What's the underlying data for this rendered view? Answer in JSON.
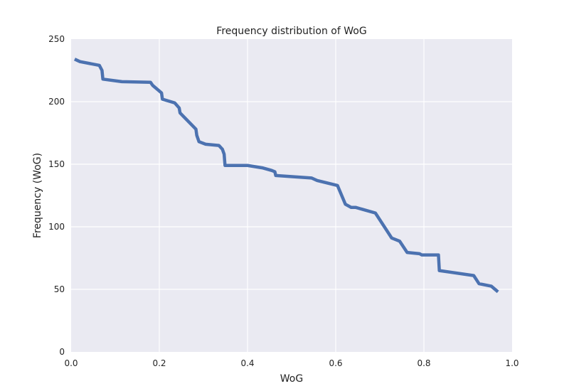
{
  "chart_data": {
    "type": "line",
    "title": "Frequency distribution of WoG",
    "xlabel": "WoG",
    "ylabel": "Frequency (WoG)",
    "xlim": [
      0.0,
      1.0
    ],
    "ylim": [
      0,
      250
    ],
    "xticks": [
      0.0,
      0.2,
      0.4,
      0.6,
      0.8,
      1.0
    ],
    "xtick_labels": [
      "0.0",
      "0.2",
      "0.4",
      "0.6",
      "0.8",
      "1.0"
    ],
    "yticks": [
      0,
      50,
      100,
      150,
      200,
      250
    ],
    "ytick_labels": [
      "0",
      "50",
      "100",
      "150",
      "200",
      "250"
    ],
    "grid": true,
    "colors": {
      "plot_bg": "#EAEAF2",
      "grid": "#FFFFFF",
      "line": "#4C72B0"
    },
    "series": [
      {
        "x": [
          0.008,
          0.02,
          0.064,
          0.07,
          0.072,
          0.115,
          0.18,
          0.185,
          0.205,
          0.207,
          0.235,
          0.245,
          0.247,
          0.283,
          0.285,
          0.29,
          0.305,
          0.335,
          0.343,
          0.347,
          0.349,
          0.4,
          0.435,
          0.455,
          0.462,
          0.464,
          0.545,
          0.558,
          0.604,
          0.622,
          0.635,
          0.645,
          0.69,
          0.727,
          0.745,
          0.762,
          0.79,
          0.795,
          0.833,
          0.835,
          0.913,
          0.925,
          0.953,
          0.968
        ],
        "y": [
          234,
          232,
          229,
          225,
          218,
          216,
          215.5,
          213,
          207,
          202,
          199,
          195,
          191,
          178,
          173,
          168,
          166,
          165,
          162,
          158,
          149,
          149,
          147,
          145,
          144,
          141,
          139,
          137,
          133,
          118,
          115.5,
          115.5,
          111,
          91,
          88.5,
          79.5,
          78.5,
          77.5,
          77.5,
          65,
          61,
          54.5,
          52.5,
          48
        ]
      }
    ]
  }
}
